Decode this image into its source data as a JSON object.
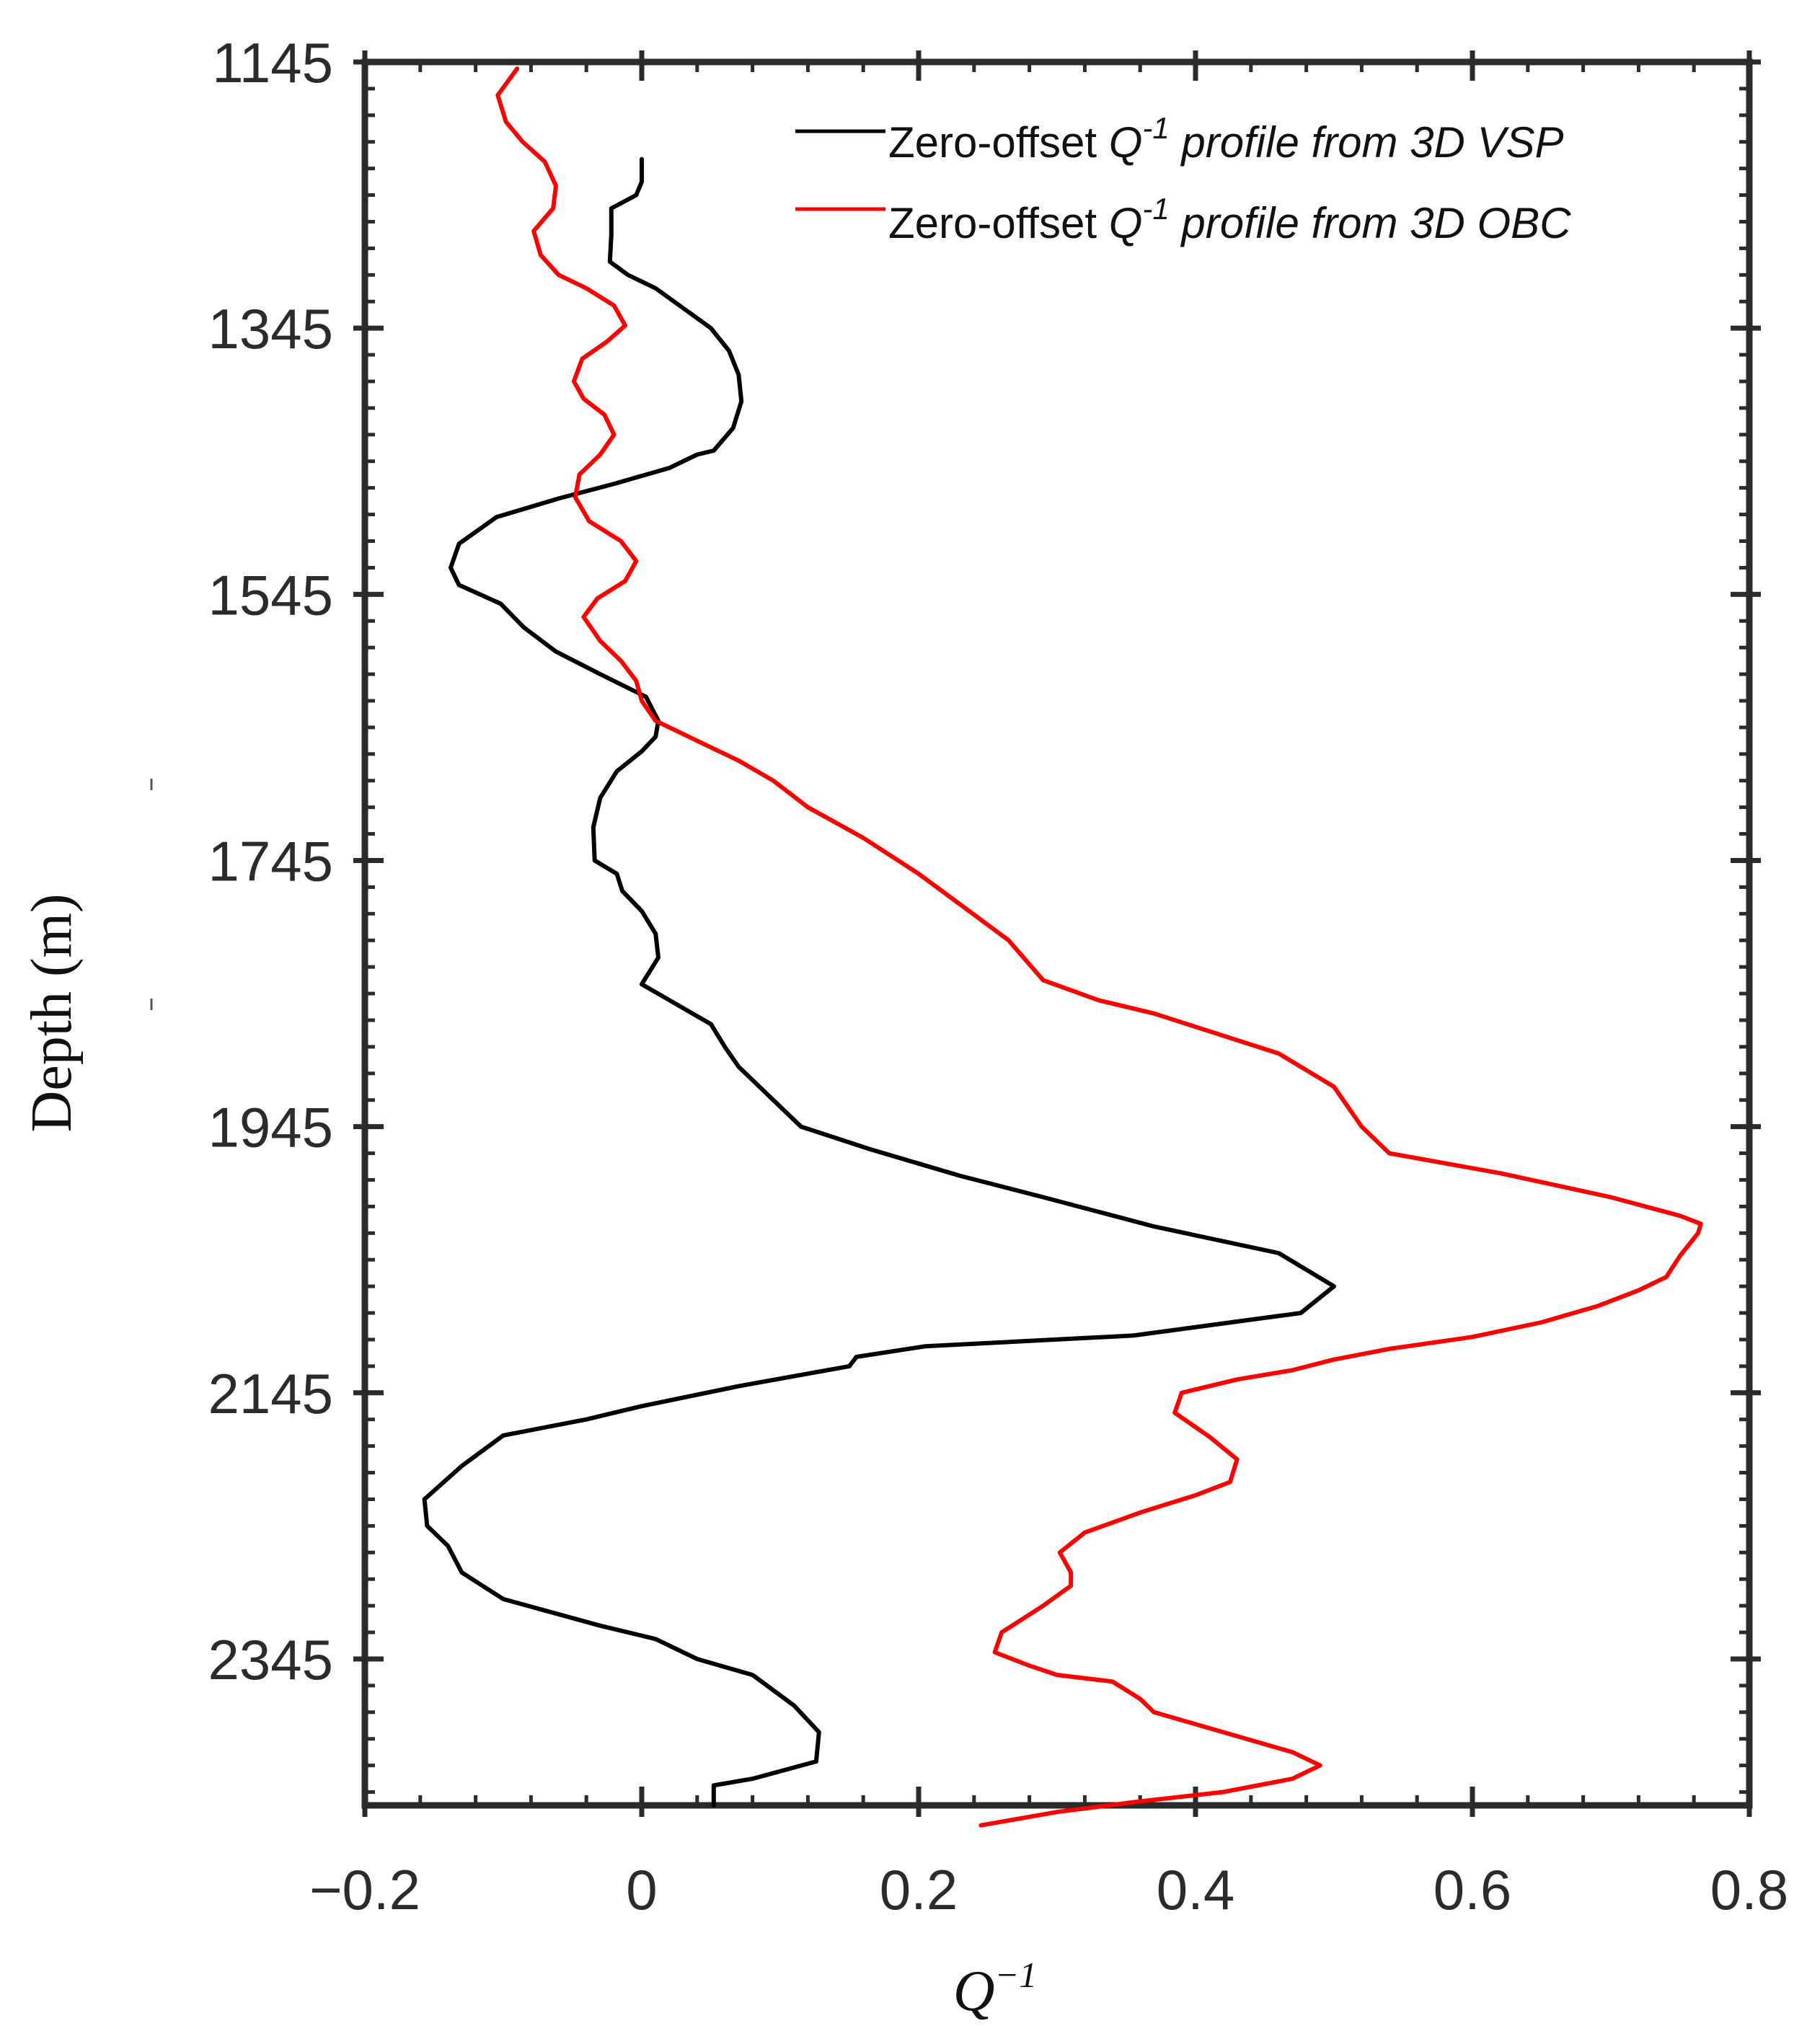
{
  "chart_data": {
    "type": "line",
    "title": "",
    "xlabel": "Q",
    "xlabel_superscript": "−1",
    "ylabel": "Depth (m)",
    "xlim": [
      -0.2,
      0.8
    ],
    "ylim": [
      1145,
      2455
    ],
    "y_inverted": true,
    "x_ticks": [
      {
        "value": -0.2,
        "label": "−0.2"
      },
      {
        "value": 0,
        "label": "0"
      },
      {
        "value": 0.2,
        "label": "0.2"
      },
      {
        "value": 0.4,
        "label": "0.4"
      },
      {
        "value": 0.6,
        "label": "0.6"
      },
      {
        "value": 0.8,
        "label": "0.8"
      }
    ],
    "y_ticks": [
      {
        "value": 1145,
        "label": "1145"
      },
      {
        "value": 1345,
        "label": "1345"
      },
      {
        "value": 1545,
        "label": "1545"
      },
      {
        "value": 1745,
        "label": "1745"
      },
      {
        "value": 1945,
        "label": "1945"
      },
      {
        "value": 2145,
        "label": "2145"
      },
      {
        "value": 2345,
        "label": "2345"
      }
    ],
    "x_minor_step": 0.04,
    "y_minor_step": 20,
    "grid": false,
    "legend_position": "top-right",
    "series": [
      {
        "name": "Zero-offset Q-1 profile from 3D VSP",
        "legend_prefix": "Zero-offset ",
        "legend_q": "Q",
        "legend_sup": "-1",
        "legend_suffix": " profile from 3D VSP",
        "color": "#000000",
        "x": [
          0.0,
          0.0,
          -0.004,
          -0.022,
          -0.022,
          -0.023,
          -0.01,
          0.01,
          0.03,
          0.05,
          0.063,
          0.07,
          0.072,
          0.066,
          0.052,
          0.04,
          0.02,
          -0.02,
          -0.06,
          -0.105,
          -0.132,
          -0.138,
          -0.132,
          -0.102,
          -0.085,
          -0.062,
          -0.03,
          0.003,
          0.012,
          0.01,
          0.0,
          -0.018,
          -0.03,
          -0.035,
          -0.034,
          -0.018,
          -0.014,
          0.0,
          0.01,
          0.012,
          0.0,
          0.02,
          0.05,
          0.06,
          0.07,
          0.09,
          0.115,
          0.165,
          0.23,
          0.29,
          0.37,
          0.46,
          0.5,
          0.476,
          0.355,
          0.205,
          0.155,
          0.15,
          0.07,
          0.0,
          -0.04,
          -0.1,
          -0.13,
          -0.157,
          -0.155,
          -0.14,
          -0.13,
          -0.1,
          -0.03,
          0.01,
          0.04,
          0.08,
          0.11,
          0.128,
          0.126,
          0.08,
          0.052,
          0.052
        ],
        "y": [
          1218,
          1235,
          1245,
          1255,
          1275,
          1295,
          1305,
          1315,
          1330,
          1345,
          1362,
          1380,
          1400,
          1420,
          1437,
          1440,
          1450,
          1462,
          1473,
          1487,
          1507,
          1525,
          1538,
          1552,
          1570,
          1588,
          1605,
          1622,
          1640,
          1652,
          1663,
          1678,
          1698,
          1720,
          1745,
          1755,
          1768,
          1783,
          1800,
          1818,
          1838,
          1850,
          1868,
          1885,
          1900,
          1920,
          1945,
          1962,
          1982,
          1998,
          2020,
          2040,
          2065,
          2085,
          2102,
          2110,
          2118,
          2125,
          2140,
          2155,
          2165,
          2177,
          2200,
          2225,
          2245,
          2260,
          2280,
          2300,
          2320,
          2330,
          2345,
          2357,
          2380,
          2400,
          2422,
          2435,
          2440,
          2455
        ]
      },
      {
        "name": "Zero-offset Q-1 profile from 3D OBC",
        "legend_prefix": "Zero-offset ",
        "legend_q": "Q",
        "legend_sup": "-1",
        "legend_suffix": " profile from 3D OBC",
        "color": "#ff0000",
        "x": [
          -0.09,
          -0.104,
          -0.098,
          -0.086,
          -0.07,
          -0.062,
          -0.064,
          -0.078,
          -0.073,
          -0.06,
          -0.04,
          -0.02,
          -0.012,
          -0.025,
          -0.043,
          -0.049,
          -0.042,
          -0.027,
          -0.02,
          -0.03,
          -0.045,
          -0.048,
          -0.038,
          -0.015,
          -0.004,
          -0.012,
          -0.032,
          -0.042,
          -0.03,
          -0.015,
          -0.004,
          0.0,
          0.01,
          0.04,
          0.07,
          0.095,
          0.12,
          0.16,
          0.2,
          0.23,
          0.265,
          0.29,
          0.33,
          0.37,
          0.4,
          0.46,
          0.5,
          0.52,
          0.54,
          0.62,
          0.7,
          0.75,
          0.765,
          0.763,
          0.75,
          0.74,
          0.72,
          0.69,
          0.65,
          0.6,
          0.54,
          0.5,
          0.47,
          0.43,
          0.39,
          0.385,
          0.41,
          0.43,
          0.425,
          0.4,
          0.36,
          0.32,
          0.302,
          0.31,
          0.31,
          0.29,
          0.26,
          0.255,
          0.28,
          0.3,
          0.34,
          0.36,
          0.37,
          0.42,
          0.47,
          0.49,
          0.47,
          0.42,
          0.36,
          0.3,
          0.245
        ],
        "y": [
          1150,
          1170,
          1190,
          1205,
          1220,
          1238,
          1255,
          1272,
          1290,
          1305,
          1315,
          1328,
          1343,
          1355,
          1368,
          1385,
          1398,
          1410,
          1425,
          1440,
          1455,
          1472,
          1490,
          1505,
          1520,
          1535,
          1548,
          1562,
          1580,
          1595,
          1610,
          1625,
          1640,
          1655,
          1670,
          1685,
          1705,
          1728,
          1755,
          1778,
          1805,
          1835,
          1850,
          1860,
          1870,
          1890,
          1915,
          1945,
          1965,
          1980,
          1998,
          2012,
          2018,
          2025,
          2042,
          2058,
          2068,
          2080,
          2092,
          2103,
          2112,
          2120,
          2128,
          2135,
          2145,
          2160,
          2178,
          2195,
          2212,
          2222,
          2235,
          2250,
          2265,
          2280,
          2290,
          2305,
          2325,
          2340,
          2350,
          2357,
          2362,
          2375,
          2385,
          2400,
          2415,
          2425,
          2435,
          2445,
          2452,
          2460,
          2470
        ]
      }
    ]
  }
}
